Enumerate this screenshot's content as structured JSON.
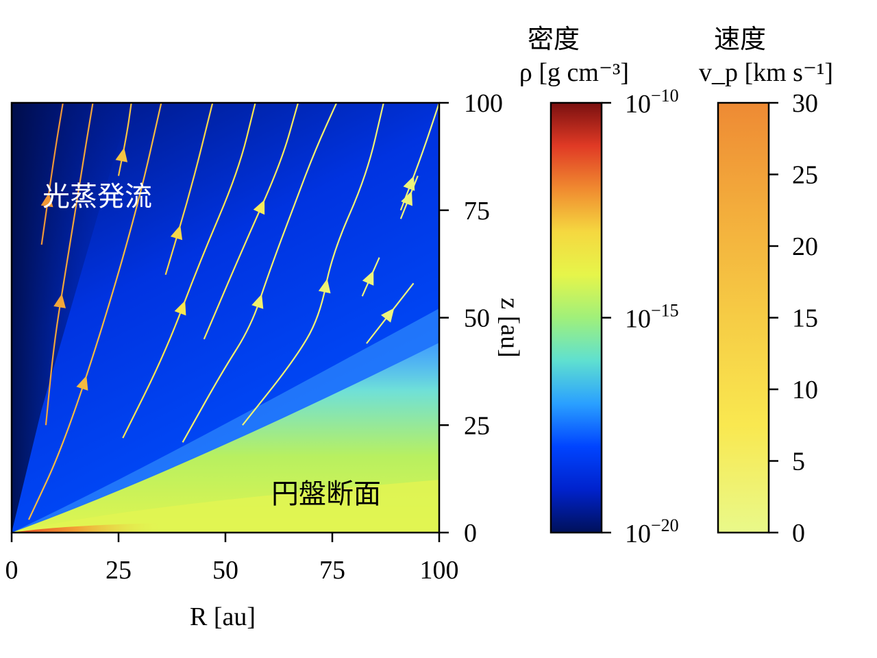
{
  "chart_data": {
    "type": "heatmap",
    "title": "",
    "xlabel": "R [au]",
    "ylabel": "z [au]",
    "xlim": [
      0,
      100
    ],
    "ylim": [
      0,
      100
    ],
    "x_ticks": [
      "0",
      "25",
      "50",
      "75",
      "100"
    ],
    "y_ticks": [
      "0",
      "25",
      "50",
      "75",
      "100"
    ],
    "grid": false,
    "annotations": {
      "wind": "光蒸発流",
      "disk": "円盤断面"
    },
    "density_colorbar": {
      "title": "密度",
      "label": "ρ [g cm⁻³]",
      "scale": "log",
      "range": [
        1e-20,
        1e-10
      ],
      "ticks": [
        {
          "value": -20,
          "base": "10",
          "exp": "−20"
        },
        {
          "value": -15,
          "base": "10",
          "exp": "−15"
        },
        {
          "value": -10,
          "base": "10",
          "exp": "−10"
        }
      ],
      "colors": [
        "#00115a",
        "#0022cc",
        "#0044ff",
        "#2aa0ff",
        "#5fe0d0",
        "#a0f07a",
        "#e6f54a",
        "#f5d840",
        "#f08a30",
        "#e03a25",
        "#7a1010"
      ]
    },
    "velocity_colorbar": {
      "title": "速度",
      "label": "v_p [km s⁻¹]",
      "range": [
        0,
        30
      ],
      "ticks": [
        "0",
        "5",
        "10",
        "15",
        "20",
        "25",
        "30"
      ],
      "colors": [
        "#e9f98a",
        "#f9e850",
        "#f6cc45",
        "#f3ad3c",
        "#ee8a34"
      ]
    },
    "streamlines": [
      {
        "points": [
          [
            7,
            67
          ],
          [
            10,
            88
          ],
          [
            12,
            100
          ]
        ],
        "speed": 27
      },
      {
        "points": [
          [
            8,
            25
          ],
          [
            10,
            45
          ],
          [
            13,
            63
          ],
          [
            16,
            82
          ],
          [
            19,
            100
          ]
        ],
        "speed": 24
      },
      {
        "points": [
          [
            4,
            3
          ],
          [
            12,
            20
          ],
          [
            22,
            50
          ],
          [
            30,
            78
          ],
          [
            35,
            100
          ]
        ],
        "speed": 19
      },
      {
        "points": [
          [
            25,
            83
          ],
          [
            27,
            93
          ],
          [
            28,
            100
          ]
        ],
        "speed": 17
      },
      {
        "points": [
          [
            36,
            60
          ],
          [
            42,
            80
          ],
          [
            47,
            100
          ]
        ],
        "speed": 12
      },
      {
        "points": [
          [
            26,
            22
          ],
          [
            36,
            42
          ],
          [
            44,
            63
          ],
          [
            53,
            84
          ],
          [
            57,
            100
          ]
        ],
        "speed": 8
      },
      {
        "points": [
          [
            45,
            45
          ],
          [
            54,
            66
          ],
          [
            63,
            86
          ],
          [
            67,
            100
          ]
        ],
        "speed": 6
      },
      {
        "points": [
          [
            40,
            21
          ],
          [
            49,
            37
          ],
          [
            56,
            48
          ],
          [
            60,
            60
          ],
          [
            66,
            76
          ],
          [
            71,
            89
          ],
          [
            76,
            100
          ]
        ],
        "speed": 4
      },
      {
        "points": [
          [
            54,
            25
          ],
          [
            66,
            40
          ],
          [
            72,
            50
          ],
          [
            75,
            65
          ],
          [
            83,
            83
          ],
          [
            87,
            100
          ]
        ],
        "speed": 3
      },
      {
        "points": [
          [
            82,
            55
          ],
          [
            86,
            64
          ]
        ],
        "speed": 2
      },
      {
        "points": [
          [
            83,
            44
          ],
          [
            94,
            58
          ]
        ],
        "speed": 2
      },
      {
        "points": [
          [
            91,
            73
          ],
          [
            95,
            83
          ]
        ],
        "speed": 2
      },
      {
        "points": [
          [
            91,
            75
          ],
          [
            96,
            88
          ],
          [
            100,
            100
          ]
        ],
        "speed": 2
      }
    ]
  }
}
